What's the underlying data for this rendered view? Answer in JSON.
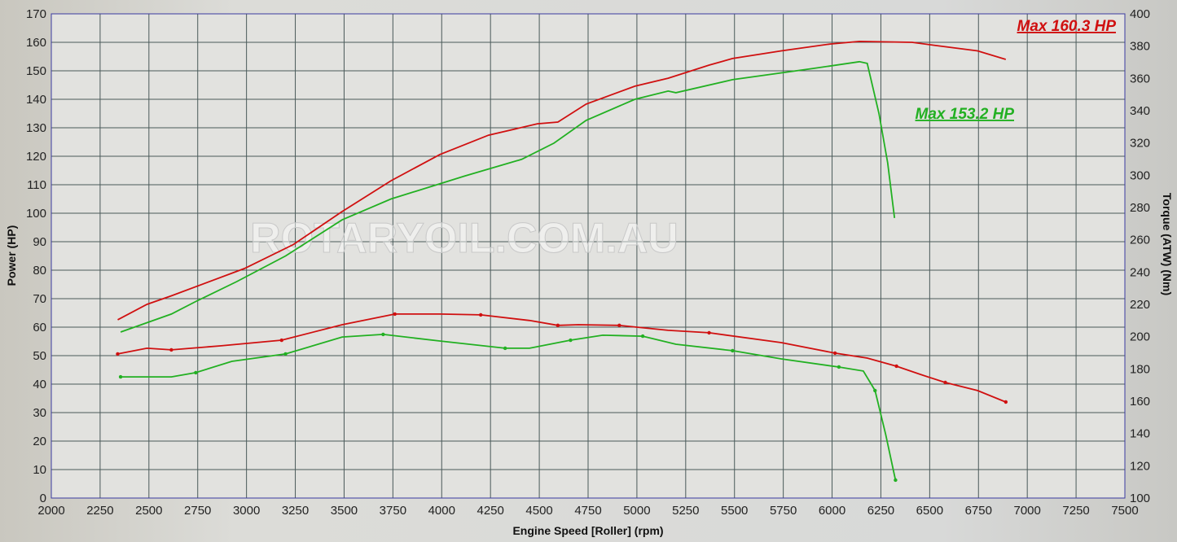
{
  "chart_data": {
    "type": "line",
    "title": "",
    "xlabel": "Engine Speed [Roller] (rpm)",
    "ylabel": "Power (HP)",
    "y2label": "Torque (ATW) (Nm)",
    "xlim": [
      2000,
      7500
    ],
    "ylim": [
      0,
      170
    ],
    "y2lim": [
      100,
      400
    ],
    "xticks": [
      2000,
      2250,
      2500,
      2750,
      3000,
      3250,
      3500,
      3750,
      4000,
      4250,
      4500,
      4750,
      5000,
      5250,
      5500,
      5750,
      6000,
      6250,
      6500,
      6750,
      7000,
      7250,
      7500
    ],
    "yticks": [
      0,
      10,
      20,
      30,
      40,
      50,
      60,
      70,
      80,
      90,
      100,
      110,
      120,
      130,
      140,
      150,
      160,
      170
    ],
    "y2ticks": [
      100,
      120,
      140,
      160,
      180,
      200,
      220,
      240,
      260,
      280,
      300,
      320,
      340,
      360,
      380,
      400
    ],
    "grid": true,
    "watermark": "ROTARYOIL.COM.AU",
    "annotations": [
      {
        "text": "Max 160.3 HP",
        "color": "#d01010"
      },
      {
        "text": "Max 153.2 HP",
        "color": "#22b022"
      }
    ],
    "series": [
      {
        "axis": "left",
        "kind": "power",
        "color": "#d01010",
        "x": [
          2340,
          2490,
          2615,
          2990,
          3240,
          3490,
          3740,
          3990,
          4240,
          4490,
          4595,
          4740,
          4990,
          5160,
          5370,
          5490,
          5740,
          5990,
          6140,
          6410,
          6530,
          6745,
          6890
        ],
        "y": [
          62.6,
          68,
          71,
          80.6,
          89,
          100.6,
          111.4,
          120.6,
          127.4,
          131.4,
          132,
          138.3,
          144.6,
          147.4,
          152,
          154.3,
          157,
          159.4,
          160.3,
          160,
          158.9,
          157,
          154
        ]
      },
      {
        "axis": "left",
        "kind": "power",
        "color": "#22b022",
        "x": [
          2355,
          2615,
          2740,
          2950,
          3200,
          3490,
          3740,
          3990,
          4115,
          4410,
          4575,
          4740,
          4990,
          5160,
          5200,
          5490,
          5910,
          6140,
          6180,
          6240,
          6285,
          6320
        ],
        "y": [
          58.3,
          64.6,
          69,
          76,
          85,
          97.7,
          105,
          110.3,
          113,
          118.9,
          124.6,
          132.6,
          140,
          142.9,
          142.3,
          146.9,
          150.9,
          153.2,
          152.6,
          135,
          117.7,
          98.3
        ]
      },
      {
        "axis": "right",
        "kind": "torque",
        "color": "#d01010",
        "x": [
          2340,
          2490,
          2615,
          2865,
          3180,
          3490,
          3760,
          3990,
          4200,
          4450,
          4595,
          4700,
          4910,
          5160,
          5370,
          5740,
          6015,
          6180,
          6330,
          6450,
          6580,
          6745,
          6890
        ],
        "y": [
          189.3,
          192.8,
          191.8,
          194.3,
          197.8,
          207.4,
          214,
          214,
          213.5,
          210,
          207,
          207.4,
          207,
          203.9,
          202.4,
          196.3,
          189.8,
          186.7,
          181.7,
          176.7,
          171.6,
          166.6,
          159.5
        ]
      },
      {
        "axis": "right",
        "kind": "torque",
        "color": "#22b022",
        "x": [
          2355,
          2615,
          2740,
          2925,
          3200,
          3490,
          3700,
          3990,
          4325,
          4450,
          4660,
          4825,
          5030,
          5200,
          5490,
          5740,
          6035,
          6160,
          6220,
          6275,
          6325
        ],
        "y": [
          175.1,
          175.1,
          177.7,
          184.7,
          189.3,
          199.8,
          201.4,
          197.3,
          192.8,
          192.8,
          197.8,
          200.9,
          200.3,
          195.3,
          191.3,
          186.2,
          181.2,
          178.7,
          166.6,
          139.3,
          111.1
        ]
      }
    ]
  }
}
